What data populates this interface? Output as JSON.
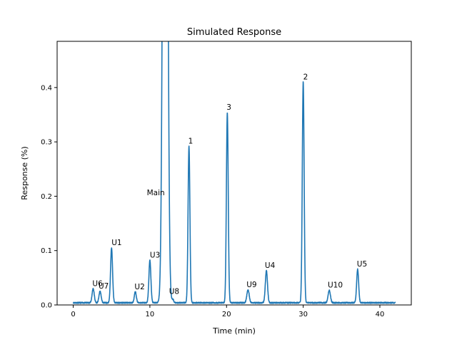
{
  "chart_data": {
    "type": "line",
    "title": "Simulated Response",
    "xlabel": "Time (min)",
    "ylabel": "Response (%)",
    "xlim": [
      -2.1,
      44.1
    ],
    "ylim": [
      0,
      0.485
    ],
    "xticks": [
      0,
      10,
      20,
      30,
      40
    ],
    "xtick_labels": [
      "0",
      "10",
      "20",
      "30",
      "40"
    ],
    "yticks": [
      0,
      0.1,
      0.2,
      0.3,
      0.4
    ],
    "ytick_labels": [
      "0.0",
      "0.1",
      "0.2",
      "0.3",
      "0.4"
    ],
    "grid": false,
    "baseline": 0.004,
    "x_range": [
      0,
      42
    ],
    "line_color": "#1f77b4",
    "series": [
      {
        "peaks": [
          {
            "label": "U6",
            "x": 2.6,
            "y": 0.03
          },
          {
            "label": "U7",
            "x": 3.5,
            "y": 0.025
          },
          {
            "label": "U1",
            "x": 5.0,
            "y": 0.105
          },
          {
            "label": "U2",
            "x": 8.1,
            "y": 0.024
          },
          {
            "label": "U3",
            "x": 10.0,
            "y": 0.082
          },
          {
            "label": "Main",
            "x": 12.0,
            "y": 2.0
          },
          {
            "label": "U8",
            "x": 13.0,
            "y": 0.01
          },
          {
            "label": "1",
            "x": 15.1,
            "y": 0.292
          },
          {
            "label": "3",
            "x": 20.1,
            "y": 0.354
          },
          {
            "label": "U9",
            "x": 22.8,
            "y": 0.028
          },
          {
            "label": "U4",
            "x": 25.2,
            "y": 0.063
          },
          {
            "label": "2",
            "x": 30.0,
            "y": 0.41
          },
          {
            "label": "U10",
            "x": 33.4,
            "y": 0.027
          },
          {
            "label": "U5",
            "x": 37.1,
            "y": 0.066
          }
        ]
      }
    ],
    "annotations": [
      {
        "text": "U6",
        "x": 2.5,
        "y": 0.035
      },
      {
        "text": "U7",
        "x": 3.3,
        "y": 0.03
      },
      {
        "text": "U1",
        "x": 5.0,
        "y": 0.11
      },
      {
        "text": "U2",
        "x": 8.0,
        "y": 0.029
      },
      {
        "text": "U3",
        "x": 10.0,
        "y": 0.087
      },
      {
        "text": "Main",
        "x": 9.6,
        "y": 0.202
      },
      {
        "text": "U8",
        "x": 12.5,
        "y": 0.02
      },
      {
        "text": "1",
        "x": 15.0,
        "y": 0.297
      },
      {
        "text": "3",
        "x": 20.0,
        "y": 0.359
      },
      {
        "text": "U9",
        "x": 22.6,
        "y": 0.033
      },
      {
        "text": "U4",
        "x": 25.0,
        "y": 0.068
      },
      {
        "text": "2",
        "x": 30.0,
        "y": 0.415
      },
      {
        "text": "U10",
        "x": 33.2,
        "y": 0.032
      },
      {
        "text": "U5",
        "x": 37.0,
        "y": 0.071
      }
    ]
  }
}
